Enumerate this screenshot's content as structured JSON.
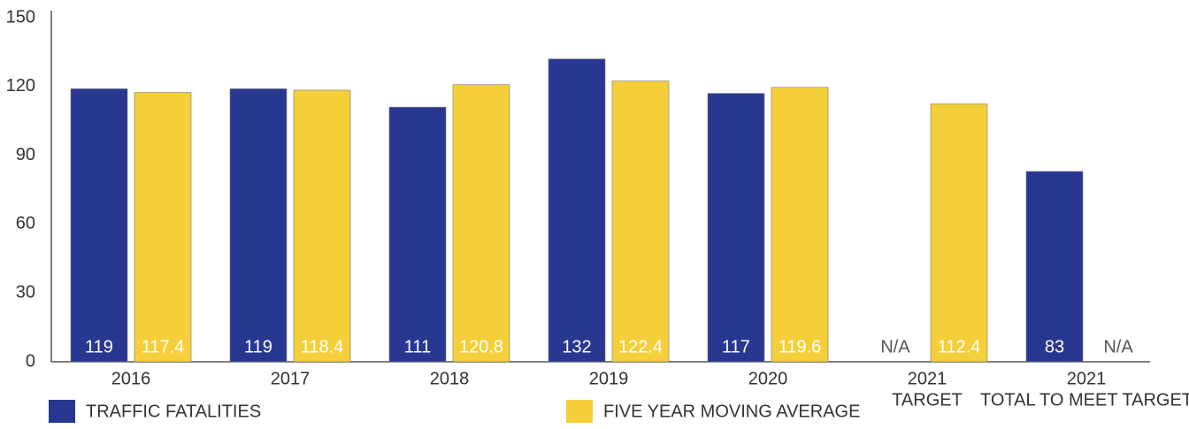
{
  "chart_data": {
    "type": "bar",
    "categories": [
      [
        "2016"
      ],
      [
        "2017"
      ],
      [
        "2018"
      ],
      [
        "2019"
      ],
      [
        "2020"
      ],
      [
        "2021",
        "TARGET"
      ],
      [
        "2021",
        "TOTAL TO MEET TARGET"
      ]
    ],
    "series": [
      {
        "name": "TRAFFIC FATALITIES",
        "color": "#283891",
        "values": [
          119,
          119,
          111,
          132,
          117,
          null,
          83
        ],
        "value_labels": [
          "119",
          "119",
          "111",
          "132",
          "117",
          "N/A",
          "83"
        ]
      },
      {
        "name": "FIVE YEAR MOVING AVERAGE",
        "color": "#f5cf3a",
        "values": [
          117.4,
          118.4,
          120.8,
          122.4,
          119.6,
          112.4,
          null
        ],
        "value_labels": [
          "117.4",
          "118.4",
          "120.8",
          "122.4",
          "119.6",
          "112.4",
          "N/A"
        ]
      }
    ],
    "ylim": [
      0,
      150
    ],
    "yticks": [
      0,
      30,
      60,
      90,
      120,
      150
    ],
    "grid": false,
    "legend": "bottom"
  }
}
